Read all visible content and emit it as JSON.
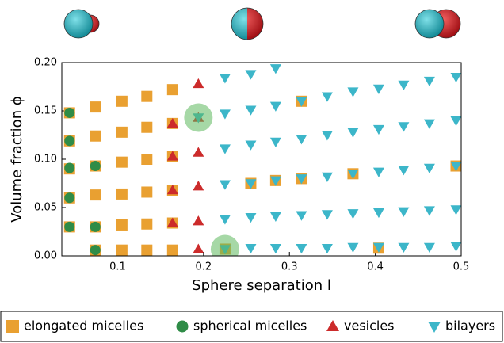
{
  "chart_data": {
    "type": "scatter",
    "x_label": "Sphere separation l",
    "y_label": "Volume fraction ϕ",
    "xlim": [
      0.035,
      0.5
    ],
    "ylim": [
      0,
      0.2
    ],
    "xticks": [
      0.1,
      0.2,
      0.3,
      0.4,
      0.5
    ],
    "yticks": [
      {
        "value": 0,
        "label": "0.00"
      },
      {
        "value": 0.05,
        "label": "0.05"
      },
      {
        "value": 0.1,
        "label": "0.10"
      },
      {
        "value": 0.15,
        "label": "0.15"
      },
      {
        "value": 0.2,
        "label": "0.20"
      }
    ],
    "series": [
      {
        "name": "elongated micelles",
        "color": "#e9a031",
        "marker": "square",
        "x": [
          0.044,
          0.044,
          0.044,
          0.044,
          0.044,
          0.074,
          0.074,
          0.074,
          0.074,
          0.074,
          0.074,
          0.105,
          0.105,
          0.105,
          0.105,
          0.105,
          0.105,
          0.134,
          0.134,
          0.134,
          0.134,
          0.134,
          0.134,
          0.164,
          0.164,
          0.164,
          0.164,
          0.164,
          0.164,
          0.225,
          0.255,
          0.284,
          0.314,
          0.314,
          0.374,
          0.404,
          0.494
        ],
        "values": [
          0.148,
          0.119,
          0.09,
          0.06,
          0.03,
          0.154,
          0.124,
          0.093,
          0.063,
          0.03,
          0.006,
          0.16,
          0.128,
          0.097,
          0.064,
          0.032,
          0.006,
          0.165,
          0.133,
          0.1,
          0.066,
          0.033,
          0.006,
          0.172,
          0.137,
          0.103,
          0.068,
          0.034,
          0.006,
          0.007,
          0.075,
          0.078,
          0.16,
          0.08,
          0.085,
          0.008,
          0.093
        ]
      },
      {
        "name": "spherical micelles",
        "color": "#2f8c47",
        "marker": "circle",
        "x": [
          0.044,
          0.044,
          0.044,
          0.044,
          0.044,
          0.074,
          0.074,
          0.074
        ],
        "values": [
          0.148,
          0.119,
          0.091,
          0.06,
          0.03,
          0.093,
          0.03,
          0.006
        ]
      },
      {
        "name": "vesicles",
        "color": "#cc2b2b",
        "marker": "triangle-up",
        "x": [
          0.164,
          0.164,
          0.164,
          0.164,
          0.194,
          0.194,
          0.194,
          0.194,
          0.194,
          0.194
        ],
        "values": [
          0.137,
          0.103,
          0.068,
          0.034,
          0.178,
          0.143,
          0.107,
          0.072,
          0.036,
          0.007
        ]
      },
      {
        "name": "bilayers",
        "color": "#3cb6c9",
        "marker": "triangle-down",
        "x": [
          0.194,
          0.225,
          0.225,
          0.225,
          0.225,
          0.225,
          0.225,
          0.255,
          0.255,
          0.255,
          0.255,
          0.255,
          0.255,
          0.284,
          0.284,
          0.284,
          0.284,
          0.284,
          0.284,
          0.314,
          0.314,
          0.314,
          0.314,
          0.314,
          0.344,
          0.344,
          0.344,
          0.344,
          0.344,
          0.374,
          0.374,
          0.374,
          0.374,
          0.374,
          0.404,
          0.404,
          0.404,
          0.404,
          0.404,
          0.433,
          0.433,
          0.433,
          0.433,
          0.433,
          0.463,
          0.463,
          0.463,
          0.463,
          0.463,
          0.494,
          0.494,
          0.494,
          0.494,
          0.494
        ],
        "values": [
          0.143,
          0.184,
          0.147,
          0.111,
          0.074,
          0.038,
          0.007,
          0.188,
          0.151,
          0.115,
          0.075,
          0.04,
          0.008,
          0.194,
          0.155,
          0.118,
          0.078,
          0.041,
          0.008,
          0.16,
          0.121,
          0.08,
          0.042,
          0.008,
          0.165,
          0.125,
          0.082,
          0.043,
          0.008,
          0.17,
          0.128,
          0.085,
          0.044,
          0.009,
          0.173,
          0.131,
          0.087,
          0.045,
          0.009,
          0.177,
          0.134,
          0.089,
          0.046,
          0.009,
          0.181,
          0.137,
          0.091,
          0.047,
          0.009,
          0.185,
          0.14,
          0.093,
          0.048,
          0.01
        ]
      }
    ],
    "highlights": [
      {
        "x": 0.194,
        "y": 0.143
      },
      {
        "x": 0.225,
        "y": 0.007
      }
    ],
    "highlight_color": "#5cb85c"
  }
}
